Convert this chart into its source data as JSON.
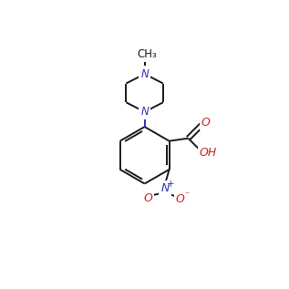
{
  "bg_color": "#ffffff",
  "bond_color": "#1a1a1a",
  "n_color": "#3333bb",
  "o_color": "#cc2222",
  "line_width": 1.4,
  "font_size": 8.5
}
